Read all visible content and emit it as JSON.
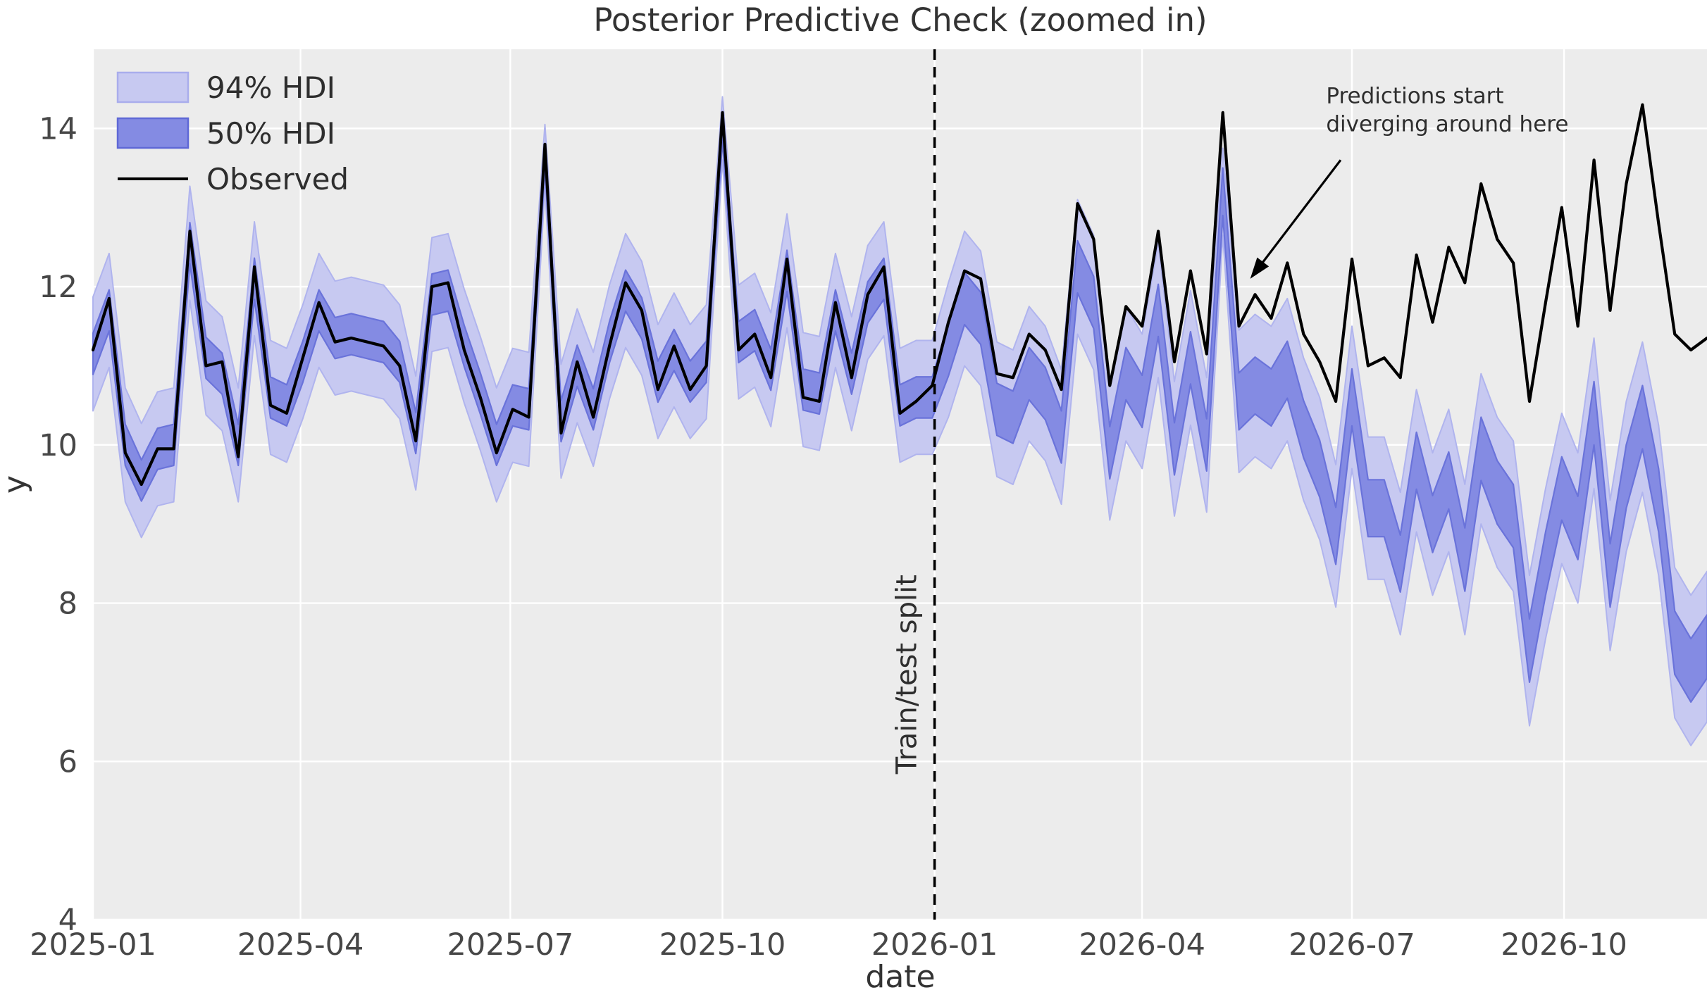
{
  "figure_title": "Posterior Predictive Check (zoomed in)",
  "chart_data": {
    "type": "line",
    "title": "Posterior Predictive Check (zoomed in)",
    "xlabel": "date",
    "ylabel": "y",
    "x_start_date": "2025-01-01",
    "x_step_days": 7,
    "n_points": 101,
    "xlim_weeks": [
      0,
      100
    ],
    "ylim": [
      4,
      15
    ],
    "grid": true,
    "y_ticks": [
      4,
      6,
      8,
      10,
      12,
      14
    ],
    "x_ticks": [
      {
        "label": "2025-01",
        "week": 0
      },
      {
        "label": "2025-04",
        "week": 12.857
      },
      {
        "label": "2025-07",
        "week": 25.857
      },
      {
        "label": "2025-10",
        "week": 39.0
      },
      {
        "label": "2026-01",
        "week": 52.143
      },
      {
        "label": "2026-04",
        "week": 65.0
      },
      {
        "label": "2026-07",
        "week": 78.0
      },
      {
        "label": "2026-10",
        "week": 91.143
      }
    ],
    "legend": {
      "position": "upper left",
      "entries": [
        {
          "label": "94% HDI",
          "type": "band",
          "color": "#c7c9f1",
          "edge": "#a9adec"
        },
        {
          "label": "50% HDI",
          "type": "band",
          "color": "#848be3",
          "edge": "#5f68d6"
        },
        {
          "label": "Observed",
          "type": "line",
          "color": "#000000"
        }
      ]
    },
    "observed": [
      11.2,
      11.85,
      9.9,
      9.5,
      9.95,
      9.95,
      12.7,
      11.0,
      11.05,
      9.85,
      12.25,
      10.5,
      10.4,
      11.1,
      11.8,
      11.3,
      11.35,
      11.3,
      11.25,
      11.0,
      10.05,
      12.0,
      12.05,
      11.2,
      10.6,
      9.9,
      10.45,
      10.35,
      13.8,
      10.15,
      11.05,
      10.35,
      11.25,
      12.05,
      11.7,
      10.7,
      11.25,
      10.7,
      11.0,
      14.2,
      11.2,
      11.4,
      10.85,
      12.35,
      10.6,
      10.55,
      11.8,
      10.85,
      11.9,
      12.25,
      10.4,
      10.55,
      10.75,
      11.55,
      12.2,
      12.1,
      10.9,
      10.85,
      11.4,
      11.2,
      10.7,
      13.05,
      12.6,
      10.75,
      11.75,
      11.5,
      12.7,
      11.05,
      12.2,
      11.15,
      14.2,
      11.5,
      11.9,
      11.6,
      12.3,
      11.4,
      11.05,
      10.55,
      12.35,
      11.0,
      11.1,
      10.85,
      12.4,
      11.55,
      12.5,
      12.05,
      13.3,
      12.6,
      12.3,
      10.55,
      11.8,
      13.0,
      11.5,
      13.6,
      11.7,
      13.3,
      14.3,
      12.8,
      11.4,
      11.2,
      11.35
    ],
    "pred_mean": [
      11.15,
      11.7,
      10.0,
      9.55,
      9.95,
      10.0,
      12.55,
      11.1,
      10.9,
      10.0,
      12.1,
      10.6,
      10.5,
      11.05,
      11.7,
      11.35,
      11.4,
      11.35,
      11.3,
      11.05,
      10.15,
      11.9,
      11.95,
      11.25,
      10.65,
      10.0,
      10.5,
      10.45,
      13.65,
      10.3,
      11.0,
      10.45,
      11.3,
      11.95,
      11.6,
      10.8,
      11.2,
      10.8,
      11.05,
      14.0,
      11.3,
      11.45,
      10.95,
      12.2,
      10.7,
      10.65,
      11.7,
      10.9,
      11.8,
      12.1,
      10.5,
      10.6,
      10.6,
      11.2,
      11.85,
      11.6,
      10.45,
      10.35,
      10.9,
      10.65,
      10.1,
      12.25,
      11.8,
      9.9,
      10.9,
      10.55,
      11.7,
      9.95,
      11.1,
      10.0,
      13.2,
      10.55,
      10.75,
      10.6,
      10.95,
      10.2,
      9.7,
      8.85,
      10.6,
      9.2,
      9.2,
      8.5,
      9.8,
      9.0,
      9.55,
      8.55,
      9.95,
      9.4,
      9.1,
      7.4,
      8.5,
      9.45,
      8.95,
      10.4,
      8.35,
      9.6,
      10.35,
      9.3,
      7.5,
      7.15,
      7.45
    ],
    "hdi50_halfwidth": [
      0.26,
      0.26,
      0.26,
      0.26,
      0.26,
      0.26,
      0.26,
      0.26,
      0.26,
      0.26,
      0.26,
      0.26,
      0.26,
      0.26,
      0.26,
      0.26,
      0.26,
      0.26,
      0.26,
      0.26,
      0.26,
      0.26,
      0.26,
      0.26,
      0.26,
      0.26,
      0.26,
      0.26,
      0.15,
      0.26,
      0.26,
      0.26,
      0.26,
      0.26,
      0.26,
      0.26,
      0.26,
      0.26,
      0.26,
      0.15,
      0.26,
      0.26,
      0.26,
      0.26,
      0.26,
      0.26,
      0.26,
      0.26,
      0.26,
      0.26,
      0.26,
      0.26,
      0.26,
      0.33,
      0.33,
      0.33,
      0.33,
      0.33,
      0.33,
      0.33,
      0.33,
      0.33,
      0.33,
      0.33,
      0.33,
      0.33,
      0.33,
      0.33,
      0.33,
      0.33,
      0.3,
      0.36,
      0.36,
      0.36,
      0.36,
      0.36,
      0.36,
      0.36,
      0.36,
      0.36,
      0.36,
      0.36,
      0.36,
      0.36,
      0.36,
      0.4,
      0.4,
      0.4,
      0.4,
      0.4,
      0.4,
      0.4,
      0.4,
      0.4,
      0.4,
      0.4,
      0.4,
      0.4,
      0.4,
      0.4,
      0.4
    ],
    "hdi94_halfwidth": [
      0.72,
      0.72,
      0.72,
      0.72,
      0.72,
      0.72,
      0.72,
      0.72,
      0.72,
      0.72,
      0.72,
      0.72,
      0.72,
      0.72,
      0.72,
      0.72,
      0.72,
      0.72,
      0.72,
      0.72,
      0.72,
      0.72,
      0.72,
      0.72,
      0.72,
      0.72,
      0.72,
      0.72,
      0.4,
      0.72,
      0.72,
      0.72,
      0.72,
      0.72,
      0.72,
      0.72,
      0.72,
      0.72,
      0.72,
      0.4,
      0.72,
      0.72,
      0.72,
      0.72,
      0.72,
      0.72,
      0.72,
      0.72,
      0.72,
      0.72,
      0.72,
      0.72,
      0.72,
      0.85,
      0.85,
      0.85,
      0.85,
      0.85,
      0.85,
      0.85,
      0.85,
      0.85,
      0.85,
      0.85,
      0.85,
      0.85,
      0.85,
      0.85,
      0.85,
      0.85,
      0.55,
      0.9,
      0.9,
      0.9,
      0.9,
      0.9,
      0.9,
      0.9,
      0.9,
      0.9,
      0.9,
      0.9,
      0.9,
      0.9,
      0.9,
      0.95,
      0.95,
      0.95,
      0.95,
      0.95,
      0.95,
      0.95,
      0.95,
      0.95,
      0.95,
      0.95,
      0.95,
      0.95,
      0.95,
      0.95,
      0.95
    ],
    "split": {
      "label": "Train/test split",
      "date": "2026-01-01",
      "week": 52.143,
      "label_center_value": 7.1
    },
    "annotation": {
      "line1": "Predictions start",
      "line2": "diverging around here",
      "text_week": 76.4,
      "text_value": 14.32,
      "line_height_px": 40,
      "arrow_start_week": 77.3,
      "arrow_start_value": 13.6,
      "tip_week": 71.7,
      "tip_value": 12.1
    },
    "colors": {
      "figure_bg": "#ffffff",
      "plot_bg": "#ececec",
      "grid": "#ffffff",
      "hdi94_fill": "#c7c9f1",
      "hdi94_edge": "#b0b4ee",
      "hdi50_fill": "#848be3",
      "hdi50_edge": "#6a73da",
      "observed": "#000000",
      "split_line": "#000000",
      "title_text": "#333333",
      "tick_text": "#474747",
      "annotation_text": "#2e2e2e"
    }
  }
}
